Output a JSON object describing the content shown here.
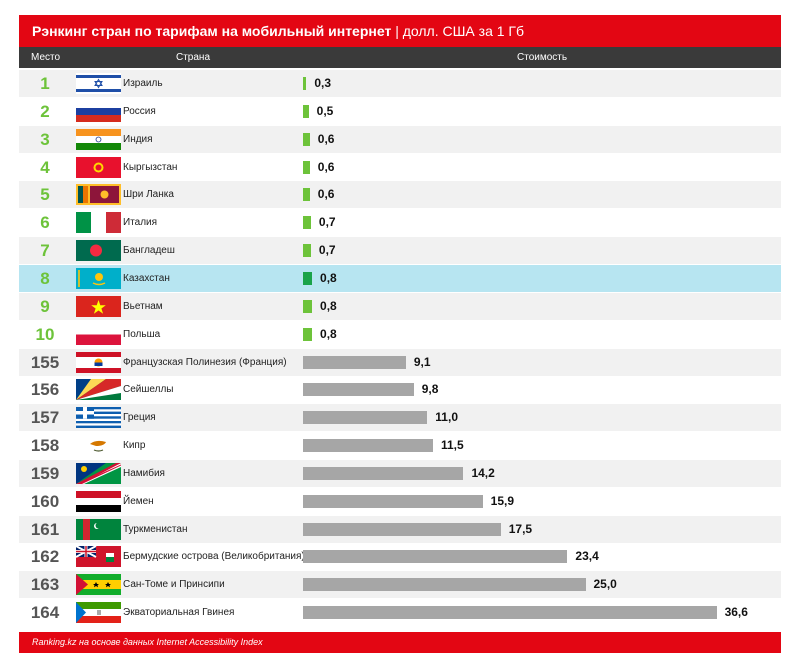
{
  "title": {
    "bold": "Рэнкинг стран по тарифам на мобильный интернет",
    "rest": " | долл. США за 1 Гб"
  },
  "header": {
    "col_rank": "Место",
    "col_country": "Страна",
    "col_cost": "Стоимость"
  },
  "footer": {
    "text": "Ranking.kz на основе данных Internet Accessibility Index"
  },
  "colors": {
    "red": "#e30613",
    "top_bar": "#6dc33a",
    "highlight_bar": "#1aa349",
    "bottom_bar": "#a6a6a6",
    "highlight_row": "#b7e5f1"
  },
  "chart_data": {
    "type": "bar",
    "orientation": "horizontal",
    "title": "Рэнкинг стран по тарифам на мобильный интернет | долл. США за 1 Гб",
    "xlim": [
      0,
      37
    ],
    "rows": [
      {
        "rank": "1",
        "country": "Израиль",
        "value": "0,3",
        "v": 0.3,
        "flag": "israel",
        "group": "top"
      },
      {
        "rank": "2",
        "country": "Россия",
        "value": "0,5",
        "v": 0.5,
        "flag": "russia",
        "group": "top"
      },
      {
        "rank": "3",
        "country": "Индия",
        "value": "0,6",
        "v": 0.6,
        "flag": "india",
        "group": "top"
      },
      {
        "rank": "4",
        "country": "Кыргызстан",
        "value": "0,6",
        "v": 0.6,
        "flag": "kyrgyzstan",
        "group": "top"
      },
      {
        "rank": "5",
        "country": "Шри Ланка",
        "value": "0,6",
        "v": 0.6,
        "flag": "srilanka",
        "group": "top"
      },
      {
        "rank": "6",
        "country": "Италия",
        "value": "0,7",
        "v": 0.7,
        "flag": "italy",
        "group": "top"
      },
      {
        "rank": "7",
        "country": "Бангладеш",
        "value": "0,7",
        "v": 0.7,
        "flag": "bangladesh",
        "group": "top"
      },
      {
        "rank": "8",
        "country": "Казахстан",
        "value": "0,8",
        "v": 0.8,
        "flag": "kazakhstan",
        "group": "top",
        "highlight": true
      },
      {
        "rank": "9",
        "country": "Вьетнам",
        "value": "0,8",
        "v": 0.8,
        "flag": "vietnam",
        "group": "top"
      },
      {
        "rank": "10",
        "country": "Польша",
        "value": "0,8",
        "v": 0.8,
        "flag": "poland",
        "group": "top"
      },
      {
        "rank": "155",
        "country": "Французская Полинезия (Франция)",
        "value": "9,1",
        "v": 9.1,
        "flag": "polynesia",
        "group": "bottom"
      },
      {
        "rank": "156",
        "country": "Сейшеллы",
        "value": "9,8",
        "v": 9.8,
        "flag": "seychelles",
        "group": "bottom"
      },
      {
        "rank": "157",
        "country": "Греция",
        "value": "11,0",
        "v": 11.0,
        "flag": "greece",
        "group": "bottom"
      },
      {
        "rank": "158",
        "country": "Кипр",
        "value": "11,5",
        "v": 11.5,
        "flag": "cyprus",
        "group": "bottom"
      },
      {
        "rank": "159",
        "country": "Намибия",
        "value": "14,2",
        "v": 14.2,
        "flag": "namibia",
        "group": "bottom"
      },
      {
        "rank": "160",
        "country": "Йемен",
        "value": "15,9",
        "v": 15.9,
        "flag": "yemen",
        "group": "bottom"
      },
      {
        "rank": "161",
        "country": "Туркменистан",
        "value": "17,5",
        "v": 17.5,
        "flag": "turkmenistan",
        "group": "bottom"
      },
      {
        "rank": "162",
        "country": "Бермудские острова (Великобритания)",
        "value": "23,4",
        "v": 23.4,
        "flag": "bermuda",
        "group": "bottom"
      },
      {
        "rank": "163",
        "country": "Сан-Томе и Принсипи",
        "value": "25,0",
        "v": 25.0,
        "flag": "saotome",
        "group": "bottom"
      },
      {
        "rank": "164",
        "country": "Экваториальная Гвинея",
        "value": "36,6",
        "v": 36.6,
        "flag": "eqguinea",
        "group": "bottom"
      }
    ]
  }
}
